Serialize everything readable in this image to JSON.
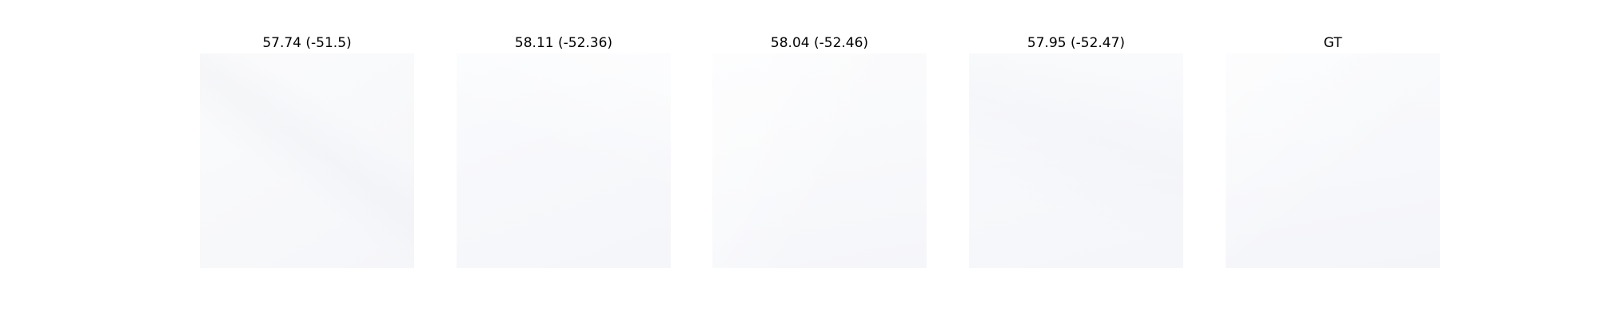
{
  "panels": [
    {
      "title": "57.74 (-51.5)"
    },
    {
      "title": "58.11 (-52.36)"
    },
    {
      "title": "58.04 (-52.46)"
    },
    {
      "title": "57.95 (-52.47)"
    },
    {
      "title": "GT"
    }
  ]
}
